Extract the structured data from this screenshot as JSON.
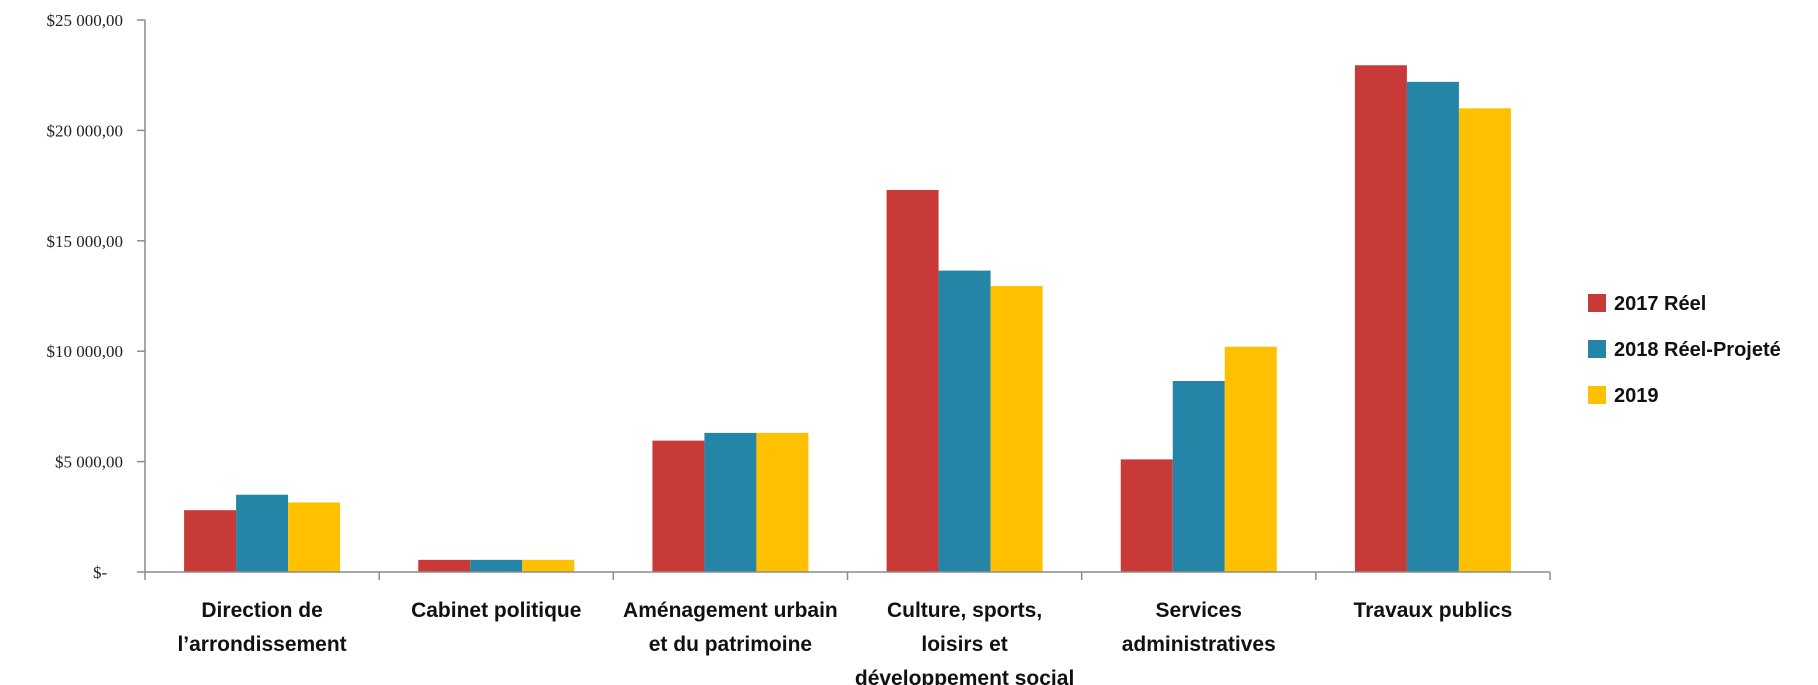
{
  "chart_data": {
    "type": "bar",
    "categories": [
      [
        "Direction de",
        "l’arrondissement"
      ],
      [
        "Cabinet politique"
      ],
      [
        "Aménagement urbain",
        "et du patrimoine"
      ],
      [
        "Culture, sports,",
        "loisirs et",
        "développement social"
      ],
      [
        "Services",
        "administratives"
      ],
      [
        "Travaux publics"
      ]
    ],
    "series": [
      {
        "name": "2017 Réel",
        "color": "#C83A37",
        "values": [
          2800,
          550,
          5950,
          17300,
          5100,
          22950
        ]
      },
      {
        "name": "2018 Réel-Projeté",
        "color": "#2585A6",
        "values": [
          3500,
          550,
          6300,
          13650,
          8650,
          22200
        ]
      },
      {
        "name": "2019",
        "color": "#FFC000",
        "values": [
          3150,
          550,
          6300,
          12950,
          10200,
          21000
        ]
      }
    ],
    "y_ticks": [
      {
        "value": 0,
        "label": "$-"
      },
      {
        "value": 5000,
        "label": "$5 000,00"
      },
      {
        "value": 10000,
        "label": "$10 000,00"
      },
      {
        "value": 15000,
        "label": "$15 000,00"
      },
      {
        "value": 20000,
        "label": "$20 000,00"
      },
      {
        "value": 25000,
        "label": "$25 000,00"
      }
    ],
    "ylim": [
      0,
      25000
    ],
    "grid": false,
    "legend_position": "right"
  }
}
